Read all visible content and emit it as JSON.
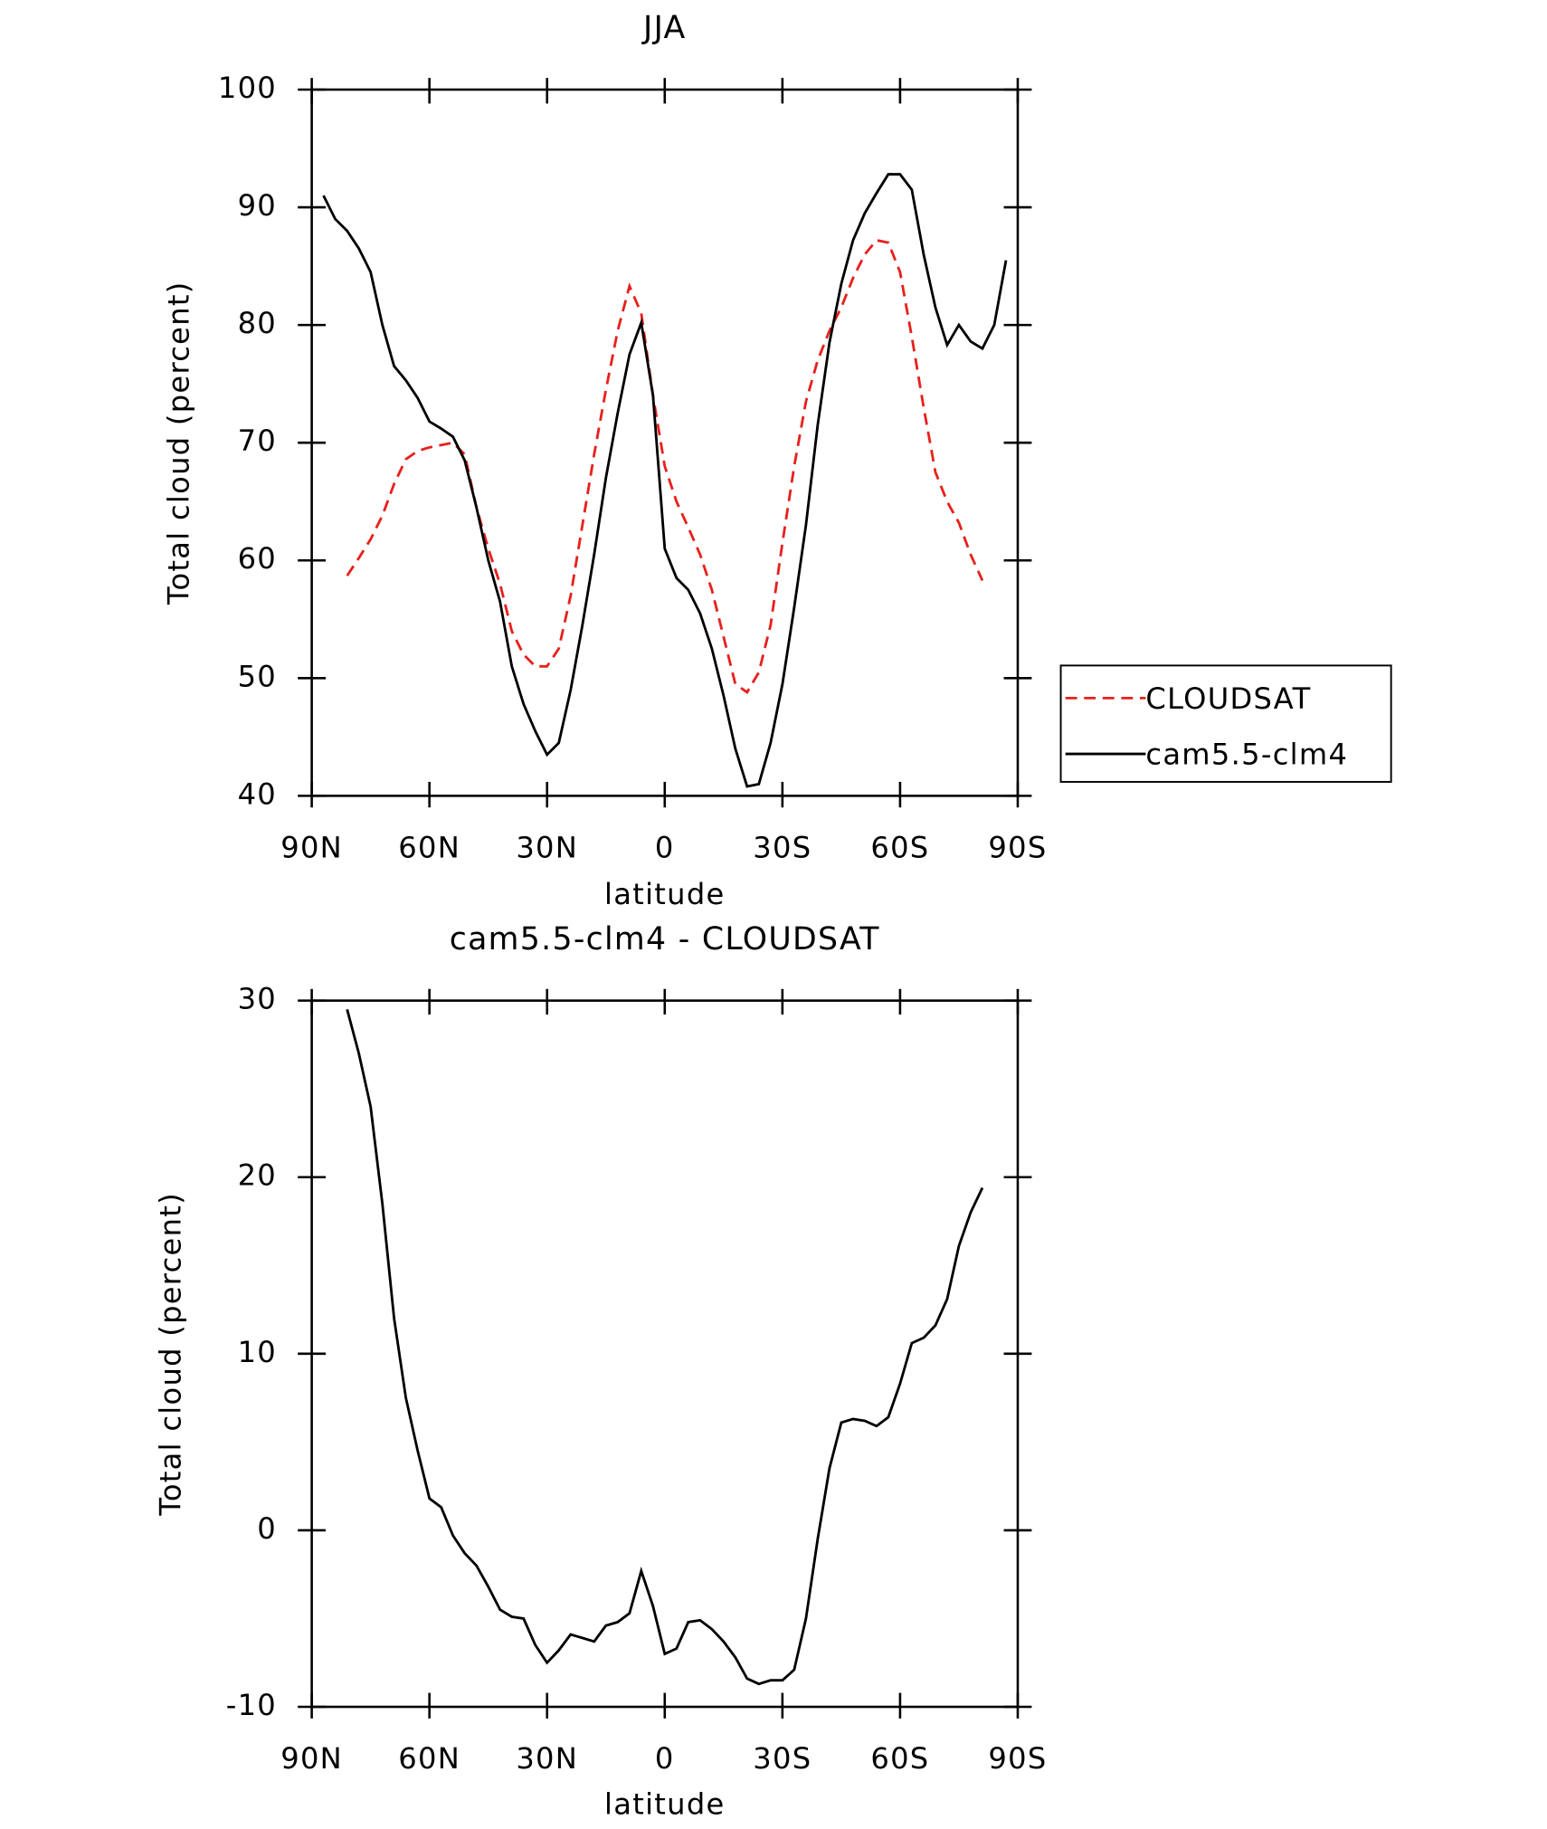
{
  "chart_data": [
    {
      "type": "line",
      "title": "JJA",
      "xlabel": "latitude",
      "ylabel": "Total cloud (percent)",
      "x": [
        87,
        84,
        81,
        78,
        75,
        72,
        69,
        66,
        63,
        60,
        57,
        54,
        51,
        48,
        45,
        42,
        39,
        36,
        33,
        30,
        27,
        24,
        21,
        18,
        15,
        12,
        9,
        6,
        3,
        0,
        -3,
        -6,
        -9,
        -12,
        -15,
        -18,
        -21,
        -24,
        -27,
        -30,
        -33,
        -36,
        -39,
        -42,
        -45,
        -48,
        -51,
        -54,
        -57,
        -60,
        -63,
        -66,
        -69,
        -72,
        -75,
        -78,
        -81,
        -84,
        -87
      ],
      "xlim": [
        90,
        -90
      ],
      "xticks": [
        {
          "value": 90,
          "label": "90N"
        },
        {
          "value": 60,
          "label": "60N"
        },
        {
          "value": 30,
          "label": "30N"
        },
        0,
        {
          "value": -30,
          "label": "30S"
        },
        {
          "value": -60,
          "label": "60S"
        },
        {
          "value": -90,
          "label": "90S"
        }
      ],
      "ylim": [
        40,
        100
      ],
      "yticks": [
        40,
        50,
        60,
        70,
        80,
        90,
        100
      ],
      "legend": "right",
      "series": [
        {
          "name": "CLOUDSAT",
          "color": "#e8201c",
          "dashed": true,
          "values": [
            null,
            null,
            58.7,
            60.2,
            61.8,
            63.8,
            66.5,
            68.6,
            69.3,
            69.6,
            69.8,
            70,
            69,
            64.5,
            61,
            58,
            54,
            52,
            51,
            51,
            52.5,
            57,
            63,
            69,
            74.5,
            79.5,
            83.3,
            81,
            74,
            68,
            65,
            62.8,
            60.5,
            57.5,
            53.5,
            49.5,
            48.8,
            50.5,
            54.5,
            61.5,
            68,
            73.5,
            77,
            79.5,
            81.5,
            84,
            86,
            87.2,
            87,
            84.5,
            79,
            73,
            67.5,
            65,
            63.2,
            60.5,
            58.3,
            null,
            null
          ]
        },
        {
          "name": "cam5.5-clm4",
          "color": "#000000",
          "dashed": false,
          "values": [
            91,
            89,
            88,
            86.5,
            84.5,
            80,
            76.5,
            75.3,
            73.8,
            71.8,
            71.2,
            70.5,
            68.5,
            64.5,
            60,
            56.5,
            51,
            47.8,
            45.5,
            43.5,
            44.5,
            49,
            54.5,
            60.5,
            67,
            72.5,
            77.5,
            80.2,
            74,
            61,
            58.5,
            57.5,
            55.5,
            52.5,
            48.5,
            44,
            40.8,
            41,
            44.5,
            49.5,
            56,
            63,
            71.5,
            78.5,
            83.5,
            87.2,
            89.5,
            91.2,
            92.8,
            92.8,
            91.5,
            86,
            81.5,
            78.3,
            80,
            78.6,
            78,
            80,
            85.5
          ]
        }
      ]
    },
    {
      "type": "line",
      "title": "cam5.5-clm4 - CLOUDSAT",
      "xlabel": "latitude",
      "ylabel": "Total cloud (percent)",
      "x": [
        81,
        78,
        75,
        72,
        69,
        66,
        63,
        60,
        57,
        54,
        51,
        48,
        45,
        42,
        39,
        36,
        33,
        30,
        27,
        24,
        21,
        18,
        15,
        12,
        9,
        6,
        3,
        0,
        -3,
        -6,
        -9,
        -12,
        -15,
        -18,
        -21,
        -24,
        -27,
        -30,
        -33,
        -36,
        -39,
        -42,
        -45,
        -48,
        -51,
        -54,
        -57,
        -60,
        -63,
        -66,
        -69,
        -72,
        -75,
        -78,
        -81
      ],
      "xlim": [
        90,
        -90
      ],
      "xticks": [
        {
          "value": 90,
          "label": "90N"
        },
        {
          "value": 60,
          "label": "60N"
        },
        {
          "value": 30,
          "label": "30N"
        },
        0,
        {
          "value": -30,
          "label": "30S"
        },
        {
          "value": -60,
          "label": "60S"
        },
        {
          "value": -90,
          "label": "90S"
        }
      ],
      "ylim": [
        -10,
        30
      ],
      "yticks": [
        -10,
        0,
        10,
        20,
        30
      ],
      "series": [
        {
          "color": "#000000",
          "dashed": false,
          "values": [
            29.5,
            27,
            24,
            18.5,
            12,
            7.5,
            4.5,
            1.8,
            1.3,
            -0.3,
            -1.3,
            -2,
            -3.2,
            -4.5,
            -4.9,
            -5,
            -6.5,
            -7.5,
            -6.8,
            -5.9,
            -6.1,
            -6.3,
            -5.4,
            -5.2,
            -4.7,
            -2.3,
            -4.3,
            -7,
            -6.7,
            -5.2,
            -5.1,
            -5.6,
            -6.3,
            -7.2,
            -8.4,
            -8.7,
            -8.5,
            -8.5,
            -7.9,
            -5,
            -0.5,
            3.5,
            6.1,
            6.3,
            6.2,
            5.9,
            6.4,
            8.3,
            10.6,
            10.9,
            11.6,
            13.1,
            16.1,
            18,
            19.4
          ]
        }
      ]
    }
  ]
}
